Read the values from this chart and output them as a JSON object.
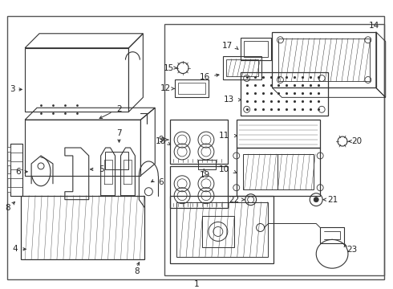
{
  "bg_color": "#ffffff",
  "border_color": "#555555",
  "line_color": "#333333",
  "label_color": "#222222",
  "fig_w": 4.9,
  "fig_h": 3.6,
  "dpi": 100
}
